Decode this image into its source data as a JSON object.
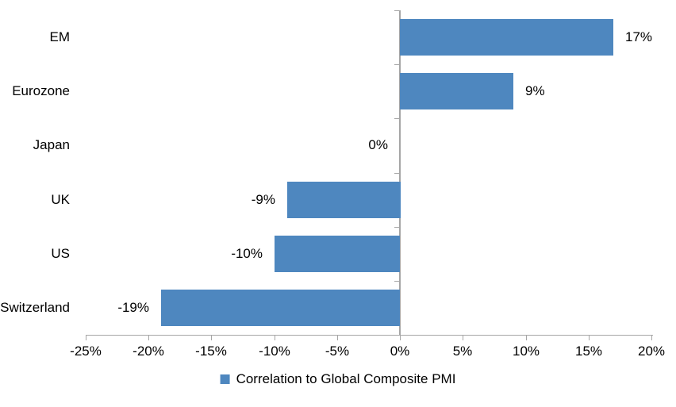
{
  "chart_data": {
    "type": "bar",
    "orientation": "horizontal",
    "title": "",
    "categories": [
      "EM",
      "Eurozone",
      "Japan",
      "UK",
      "US",
      "Switzerland"
    ],
    "values": [
      17,
      9,
      0,
      -9,
      -10,
      -19
    ],
    "data_labels": [
      "17%",
      "9%",
      "0%",
      "-9%",
      "-10%",
      "-19%"
    ],
    "x_ticks": [
      -25,
      -20,
      -15,
      -10,
      -5,
      0,
      5,
      10,
      15,
      20
    ],
    "x_tick_labels": [
      "-25%",
      "-20%",
      "-15%",
      "-10%",
      "-5%",
      "0%",
      "5%",
      "10%",
      "15%",
      "20%"
    ],
    "xlim": [
      -25,
      20
    ],
    "grid": false,
    "legend_position": "bottom",
    "legend": [
      {
        "label": "Correlation to Global Composite PMI",
        "color": "#4E87BF"
      }
    ],
    "bar_color": "#4E87BF",
    "axis_color": "#A6A6A6",
    "text_color": "#000000",
    "background": "#FFFFFF"
  }
}
